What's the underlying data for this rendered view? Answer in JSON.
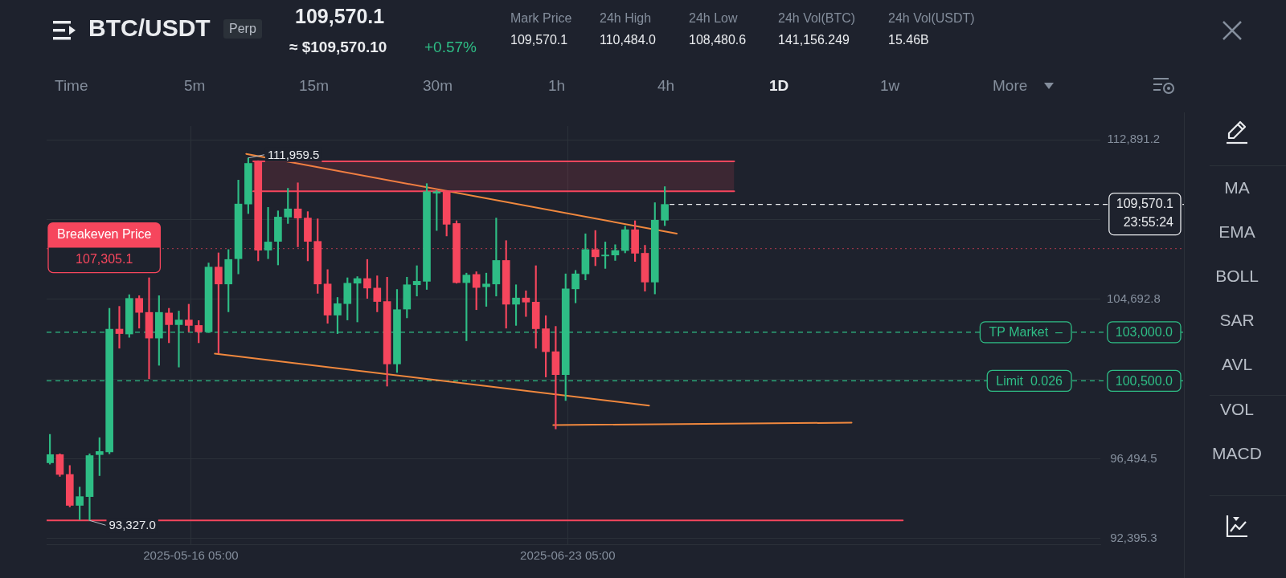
{
  "chart_data": {
    "type": "candlestick",
    "title": "BTC/USDT",
    "subtitle": "Perp",
    "x": [
      "2025-05-02",
      "2025-05-03",
      "2025-05-04",
      "2025-05-05",
      "2025-05-06",
      "2025-05-07",
      "2025-05-08",
      "2025-05-09",
      "2025-05-10",
      "2025-05-11",
      "2025-05-12",
      "2025-05-13",
      "2025-05-14",
      "2025-05-15",
      "2025-05-16",
      "2025-05-17",
      "2025-05-18",
      "2025-05-19",
      "2025-05-20",
      "2025-05-21",
      "2025-05-22",
      "2025-05-23",
      "2025-05-24",
      "2025-05-25",
      "2025-05-26",
      "2025-05-27",
      "2025-05-28",
      "2025-05-29",
      "2025-05-30",
      "2025-05-31",
      "2025-06-01",
      "2025-06-02",
      "2025-06-03",
      "2025-06-04",
      "2025-06-05",
      "2025-06-06",
      "2025-06-07",
      "2025-06-08",
      "2025-06-09",
      "2025-06-10",
      "2025-06-11",
      "2025-06-12",
      "2025-06-13",
      "2025-06-14",
      "2025-06-15",
      "2025-06-16",
      "2025-06-17",
      "2025-06-18",
      "2025-06-19",
      "2025-06-20",
      "2025-06-21",
      "2025-06-22",
      "2025-06-23",
      "2025-06-24",
      "2025-06-25",
      "2025-06-26",
      "2025-06-27",
      "2025-06-28",
      "2025-06-29",
      "2025-06-30",
      "2025-07-01",
      "2025-07-02",
      "2025-07-03"
    ],
    "ohlc": [
      [
        96290,
        97750,
        96220,
        96710
      ],
      [
        96710,
        96750,
        95590,
        95690
      ],
      [
        95690,
        96150,
        94020,
        94100
      ],
      [
        94100,
        95040,
        93360,
        94550
      ],
      [
        94550,
        96750,
        93327.0,
        96660
      ],
      [
        96710,
        97580,
        95630,
        96870
      ],
      [
        96850,
        104230,
        96750,
        103160
      ],
      [
        103160,
        104330,
        102180,
        102930
      ],
      [
        102910,
        104930,
        102740,
        104740
      ],
      [
        104740,
        104880,
        103210,
        104020
      ],
      [
        104020,
        105800,
        100610,
        102700
      ],
      [
        102700,
        104880,
        101300,
        104020
      ],
      [
        103990,
        104230,
        102460,
        103390
      ],
      [
        103390,
        104090,
        101210,
        103630
      ],
      [
        103630,
        104440,
        103020,
        103350
      ],
      [
        103350,
        103600,
        102460,
        103020
      ],
      [
        103020,
        106560,
        102990,
        106350
      ],
      [
        106350,
        107080,
        101930,
        105480
      ],
      [
        105480,
        107250,
        104050,
        106740
      ],
      [
        106780,
        110820,
        106000,
        109590
      ],
      [
        109590,
        111959.5,
        109100,
        111680
      ],
      [
        111750,
        111820,
        106670,
        107220
      ],
      [
        107220,
        109420,
        106780,
        107640
      ],
      [
        107670,
        109240,
        106460,
        108920
      ],
      [
        108920,
        110400,
        108590,
        109340
      ],
      [
        109340,
        110680,
        107390,
        108870
      ],
      [
        108870,
        109200,
        106670,
        107670
      ],
      [
        107670,
        108830,
        105000,
        105480
      ],
      [
        105480,
        106220,
        103460,
        103880
      ],
      [
        103880,
        104790,
        102930,
        104470
      ],
      [
        104470,
        105800,
        103630,
        105520
      ],
      [
        105520,
        105860,
        103530,
        105760
      ],
      [
        105760,
        106740,
        104740,
        105270
      ],
      [
        105270,
        105900,
        104050,
        104580
      ],
      [
        104580,
        105830,
        100230,
        101370
      ],
      [
        101370,
        105200,
        100930,
        104160
      ],
      [
        104190,
        105830,
        103740,
        105440
      ],
      [
        105440,
        106420,
        104860,
        105620
      ],
      [
        105620,
        110640,
        105200,
        110220
      ],
      [
        110150,
        110290,
        108230,
        110220
      ],
      [
        110220,
        110290,
        107950,
        108550
      ],
      [
        108590,
        108730,
        105520,
        105550
      ],
      [
        105550,
        106040,
        102560,
        105940
      ],
      [
        105970,
        106110,
        104160,
        105300
      ],
      [
        105340,
        106040,
        104330,
        105480
      ],
      [
        105480,
        108870,
        104860,
        106690
      ],
      [
        106690,
        107710,
        103210,
        104440
      ],
      [
        104440,
        105440,
        103350,
        104760
      ],
      [
        104760,
        105130,
        103810,
        104550
      ],
      [
        104550,
        106420,
        102180,
        103180
      ],
      [
        103180,
        103850,
        100700,
        102000
      ],
      [
        102000,
        103300,
        98030,
        100820
      ],
      [
        100820,
        106000,
        99490,
        105230
      ],
      [
        105230,
        106180,
        104510,
        106000
      ],
      [
        106000,
        108060,
        105690,
        107250
      ],
      [
        107250,
        108230,
        106420,
        106880
      ],
      [
        106920,
        107640,
        106280,
        106970
      ],
      [
        106970,
        107500,
        106690,
        107200
      ],
      [
        107200,
        108450,
        107080,
        108270
      ],
      [
        108270,
        108730,
        106640,
        107060
      ],
      [
        107060,
        107470,
        105110,
        105580
      ],
      [
        105580,
        109660,
        104970,
        108760
      ],
      [
        108760,
        110484.0,
        108480.6,
        109570.1
      ]
    ],
    "colors": [
      "#2ebd85",
      "#f6465d",
      "#f6465d",
      "#2ebd85",
      "#2ebd85",
      "#2ebd85",
      "#2ebd85",
      "#f6465d",
      "#2ebd85",
      "#f6465d",
      "#f6465d",
      "#2ebd85",
      "#f6465d",
      "#2ebd85",
      "#f6465d",
      "#f6465d",
      "#2ebd85",
      "#f6465d",
      "#2ebd85",
      "#2ebd85",
      "#2ebd85",
      "#f6465d",
      "#2ebd85",
      "#2ebd85",
      "#2ebd85",
      "#f6465d",
      "#f6465d",
      "#f6465d",
      "#f6465d",
      "#2ebd85",
      "#2ebd85",
      "#2ebd85",
      "#f6465d",
      "#f6465d",
      "#f6465d",
      "#2ebd85",
      "#2ebd85",
      "#2ebd85",
      "#2ebd85",
      "#2ebd85",
      "#f6465d",
      "#f6465d",
      "#2ebd85",
      "#f6465d",
      "#2ebd85",
      "#2ebd85",
      "#f6465d",
      "#2ebd85",
      "#f6465d",
      "#f6465d",
      "#f6465d",
      "#f6465d",
      "#2ebd85",
      "#2ebd85",
      "#2ebd85",
      "#f6465d",
      "#2ebd85",
      "#2ebd85",
      "#2ebd85",
      "#f6465d",
      "#f6465d",
      "#2ebd85",
      "#2ebd85"
    ],
    "series": [
      {
        "type": "line",
        "color": "#f6465d",
        "x": [
          "2025-05-22T12:00",
          "2025-07-10"
        ],
        "values": [
          110250,
          110250
        ],
        "lower": [
          110250,
          110250
        ],
        "upper": [
          111780,
          111780
        ]
      },
      {
        "type": "line",
        "color": "#f6465d",
        "x": [
          "2025-05-22T12:00",
          "2025-07-10"
        ],
        "values": [
          111780,
          111780
        ]
      },
      {
        "type": "line",
        "color": "#f0883e",
        "x": [
          "2025-05-21T19:00",
          "2025-07-04T05:00"
        ],
        "values": [
          112170,
          108070
        ]
      },
      {
        "type": "line",
        "color": "#f0883e",
        "x": [
          "2025-05-18T15:00",
          "2025-07-01T10:00"
        ],
        "values": [
          101900,
          99230
        ]
      },
      {
        "type": "line",
        "color": "#f0883e",
        "x": [
          "2025-06-21T18:00",
          "2025-07-21T20:00"
        ],
        "values": [
          98230,
          98350
        ]
      },
      {
        "type": "line",
        "color": "#f6465d",
        "x": [
          "2025-05-01T16:00",
          "2025-07-27"
        ],
        "values": [
          93330,
          93330
        ]
      }
    ],
    "xlim": [
      "2025-05-01T16:00",
      "2025-08-15T22:00"
    ],
    "xticks": [
      {
        "value": "2025-05-16T05:00",
        "label": "2025-05-16 05:00"
      },
      {
        "value": "2025-06-23T05:00",
        "label": "2025-06-23 05:00"
      }
    ],
    "ylim": [
      92100,
      113600
    ],
    "yticks": [
      {
        "value": 92395.3,
        "label": "92,395.3"
      },
      {
        "value": 96494.5,
        "label": "96,494.5"
      },
      {
        "value": 100593.7,
        "label": null
      },
      {
        "value": 104692.8,
        "label": "104,692.8"
      },
      {
        "value": 108792.0,
        "label": null
      },
      {
        "value": 112891.2,
        "label": "112,891.2"
      }
    ],
    "grid": true,
    "marker": "none",
    "line_style": "solid",
    "ref_lines": [
      {
        "axis": "y",
        "value": 109570.1,
        "label": "109,570.1\n23:55:24",
        "color": "#eaecef",
        "line_style": "dashed"
      },
      {
        "axis": "y",
        "value": 107305.1,
        "label": "Breakeven Price\n107,305.1",
        "color": "#f6465d",
        "line_style": "dotted"
      },
      {
        "axis": "y",
        "value": 103000.0,
        "label": "TP Market  –\n103,000.0",
        "color": "#2ebd85",
        "line_style": "dashed"
      },
      {
        "axis": "y",
        "value": 100500.0,
        "label": "Limit  0.026\n100,500.0",
        "color": "#2ebd85",
        "line_style": "dashed"
      }
    ],
    "annotations": [
      "109,570.1",
      "≈ $109,570.10",
      "+0.57%",
      "Mark Price",
      "109,570.1",
      "24h High",
      "110,484.0",
      "24h Low",
      "108,480.6",
      "24h Vol(BTC)",
      "141,156.249",
      "24h Vol(USDT)",
      "15.46B",
      "Time",
      "5m",
      "15m",
      "30m",
      "1h",
      "4h",
      "1D",
      "1w",
      "More",
      "MA",
      "EMA",
      "BOLL",
      "SAR",
      "AVL",
      "VOL",
      "MACD",
      {
        "text": "111,959.5",
        "x": "2025-05-22",
        "y": 111959.5
      },
      {
        "text": "93,327.0",
        "x": "2025-05-06",
        "y": 93327.0
      }
    ]
  }
}
